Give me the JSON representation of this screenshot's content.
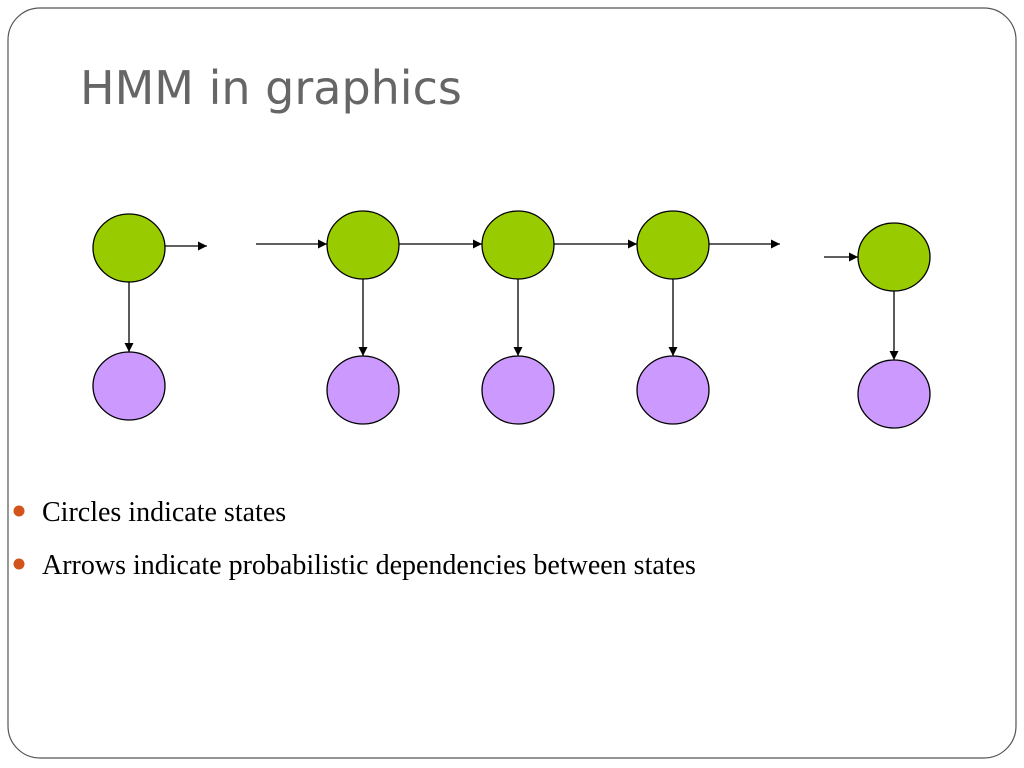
{
  "title": "HMM in graphics",
  "bullets": [
    "Circles indicate states",
    "Arrows indicate probabilistic dependencies between states"
  ]
}
